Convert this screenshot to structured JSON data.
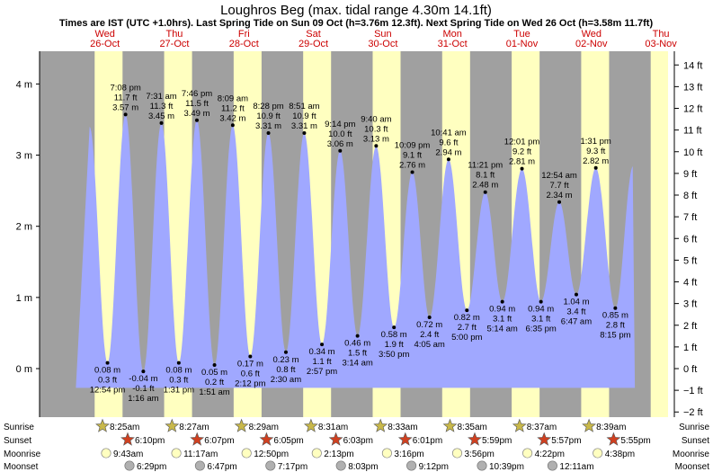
{
  "header": {
    "title": "Loughros Beg (max. tidal range 4.30m 14.1ft)",
    "subtitle": "Times are IST (UTC +1.0hrs). Last Spring Tide on Sun 09 Oct (h=3.76m 12.3ft). Next Spring Tide on Wed 26 Oct (h=3.58m 11.7ft)"
  },
  "days": [
    {
      "dow": "Wed",
      "date": "26-Oct"
    },
    {
      "dow": "Thu",
      "date": "27-Oct"
    },
    {
      "dow": "Fri",
      "date": "28-Oct"
    },
    {
      "dow": "Sat",
      "date": "29-Oct"
    },
    {
      "dow": "Sun",
      "date": "30-Oct"
    },
    {
      "dow": "Mon",
      "date": "31-Oct"
    },
    {
      "dow": "Tue",
      "date": "01-Nov"
    },
    {
      "dow": "Wed",
      "date": "02-Nov"
    },
    {
      "dow": "Thu",
      "date": "03-Nov"
    }
  ],
  "chart_data": {
    "type": "area",
    "title": "Loughros Beg (max. tidal range 4.30m 14.1ft)",
    "x_unit": "hours since 26-Oct 00:00 IST",
    "y_unit": "m",
    "ylim": [
      -0.6,
      4.5
    ],
    "y_ticks_m": [
      "0 m",
      "1 m",
      "2 m",
      "3 m",
      "4 m"
    ],
    "y_ticks_ft": [
      "−2 ft",
      "−1 ft",
      "0 ft",
      "1 ft",
      "2 ft",
      "3 ft",
      "4 ft",
      "5 ft",
      "6 ft",
      "7 ft",
      "8 ft",
      "9 ft",
      "10 ft",
      "11 ft",
      "12 ft",
      "13 ft",
      "14 ft"
    ],
    "tides": [
      {
        "time": "7:08 pm",
        "h_m": "3.57 m",
        "h_ft": "11.7 ft",
        "type": "high",
        "t": 19.13,
        "h": 3.57
      },
      {
        "time": "12:54 pm",
        "h_m": "0.08 m",
        "h_ft": "0.3 ft",
        "type": "low",
        "t": 12.9,
        "h": 0.08
      },
      {
        "time": "1:16 am",
        "h_m": "-0.04 m",
        "h_ft": "-0.1 ft",
        "type": "low",
        "t": 25.27,
        "h": -0.04
      },
      {
        "time": "7:31 am",
        "h_m": "3.45 m",
        "h_ft": "11.3 ft",
        "type": "high",
        "t": 31.52,
        "h": 3.45
      },
      {
        "time": "1:31 pm",
        "h_m": "0.08 m",
        "h_ft": "0.3 ft",
        "type": "low",
        "t": 37.52,
        "h": 0.08
      },
      {
        "time": "7:46 pm",
        "h_m": "3.49 m",
        "h_ft": "11.5 ft",
        "type": "high",
        "t": 43.77,
        "h": 3.49
      },
      {
        "time": "1:51 am",
        "h_m": "0.05 m",
        "h_ft": "0.2 ft",
        "type": "low",
        "t": 49.85,
        "h": 0.05
      },
      {
        "time": "8:09 am",
        "h_m": "3.42 m",
        "h_ft": "11.2 ft",
        "type": "high",
        "t": 56.15,
        "h": 3.42
      },
      {
        "time": "2:12 pm",
        "h_m": "0.17 m",
        "h_ft": "0.6 ft",
        "type": "low",
        "t": 62.2,
        "h": 0.17
      },
      {
        "time": "8:28 pm",
        "h_m": "3.31 m",
        "h_ft": "10.9 ft",
        "type": "high",
        "t": 68.47,
        "h": 3.31
      },
      {
        "time": "2:30 am",
        "h_m": "0.23 m",
        "h_ft": "0.8 ft",
        "type": "low",
        "t": 74.5,
        "h": 0.23
      },
      {
        "time": "8:51 am",
        "h_m": "3.31 m",
        "h_ft": "10.9 ft",
        "type": "high",
        "t": 80.85,
        "h": 3.31
      },
      {
        "time": "2:57 pm",
        "h_m": "0.34 m",
        "h_ft": "1.1 ft",
        "type": "low",
        "t": 86.95,
        "h": 0.34
      },
      {
        "time": "9:14 pm",
        "h_m": "3.06 m",
        "h_ft": "10.0 ft",
        "type": "high",
        "t": 93.23,
        "h": 3.06
      },
      {
        "time": "3:14 am",
        "h_m": "0.46 m",
        "h_ft": "1.5 ft",
        "type": "low",
        "t": 99.23,
        "h": 0.46
      },
      {
        "time": "9:40 am",
        "h_m": "3.13 m",
        "h_ft": "10.3 ft",
        "type": "high",
        "t": 105.67,
        "h": 3.13
      },
      {
        "time": "3:50 pm",
        "h_m": "0.58 m",
        "h_ft": "1.9 ft",
        "type": "low",
        "t": 111.83,
        "h": 0.58
      },
      {
        "time": "10:09 pm",
        "h_m": "2.76 m",
        "h_ft": "9.1 ft",
        "type": "high",
        "t": 118.15,
        "h": 2.76
      },
      {
        "time": "4:05 am",
        "h_m": "0.72 m",
        "h_ft": "2.4 ft",
        "type": "low",
        "t": 124.08,
        "h": 0.72
      },
      {
        "time": "10:41 am",
        "h_m": "2.94 m",
        "h_ft": "9.6 ft",
        "type": "high",
        "t": 130.68,
        "h": 2.94
      },
      {
        "time": "5:00 pm",
        "h_m": "0.82 m",
        "h_ft": "2.7 ft",
        "type": "low",
        "t": 137.0,
        "h": 0.82
      },
      {
        "time": "11:21 pm",
        "h_m": "2.48 m",
        "h_ft": "8.1 ft",
        "type": "high",
        "t": 143.35,
        "h": 2.48
      },
      {
        "time": "5:14 am",
        "h_m": "0.94 m",
        "h_ft": "3.1 ft",
        "type": "low",
        "t": 149.23,
        "h": 0.94
      },
      {
        "time": "12:01 pm",
        "h_m": "2.81 m",
        "h_ft": "9.2 ft",
        "type": "high",
        "t": 156.02,
        "h": 2.81
      },
      {
        "time": "6:35 pm",
        "h_m": "0.94 m",
        "h_ft": "3.1 ft",
        "type": "low",
        "t": 162.58,
        "h": 0.94
      },
      {
        "time": "12:54 am",
        "h_m": "2.34 m",
        "h_ft": "7.7 ft",
        "type": "high",
        "t": 168.9,
        "h": 2.34
      },
      {
        "time": "6:47 am",
        "h_m": "1.04 m",
        "h_ft": "3.4 ft",
        "type": "low",
        "t": 174.78,
        "h": 1.04
      },
      {
        "time": "1:31 pm",
        "h_m": "2.82 m",
        "h_ft": "9.3 ft",
        "type": "high",
        "t": 181.52,
        "h": 2.82
      },
      {
        "time": "8:15 pm",
        "h_m": "0.85 m",
        "h_ft": "2.8 ft",
        "type": "low",
        "t": 188.25,
        "h": 0.85
      }
    ],
    "background": {
      "night": "#a0a0a0",
      "day": "#ffffc0",
      "water": "#a0a8ff"
    }
  },
  "astro": {
    "row_labels": [
      "Sunrise",
      "Sunset",
      "Moonrise",
      "Moonset"
    ],
    "sunrise": [
      "8:25am",
      "8:27am",
      "8:29am",
      "8:31am",
      "8:33am",
      "8:35am",
      "8:37am",
      "8:39am"
    ],
    "sunset": [
      "6:10pm",
      "6:07pm",
      "6:05pm",
      "6:03pm",
      "6:01pm",
      "5:59pm",
      "5:57pm",
      "5:55pm"
    ],
    "moonrise": [
      "9:43am",
      "11:17am",
      "12:50pm",
      "2:13pm",
      "3:16pm",
      "3:56pm",
      "4:22pm",
      "4:38pm"
    ],
    "moonset": [
      "6:29pm",
      "6:47pm",
      "7:17pm",
      "8:03pm",
      "9:12pm",
      "10:39pm",
      "12:11am"
    ]
  }
}
